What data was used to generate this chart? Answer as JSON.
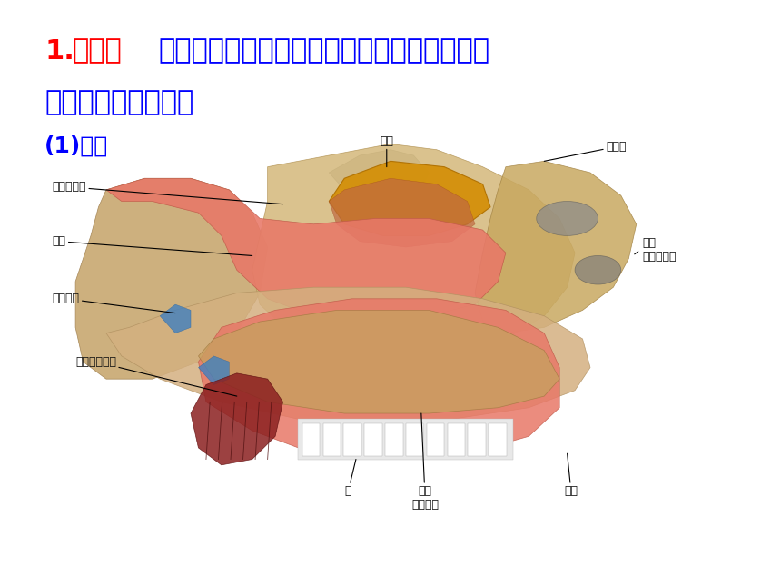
{
  "bg_color": "#ffffff",
  "line1_red_part1": "1.",
  "line1_red_part2": "呼吸道",
  "line1_blue": "：由鼻、咽、喉、气管和支气管等组成，是气",
  "line2_blue": "体进出人体的通道。",
  "subtitle_blue": "(1)鼻：",
  "title_fontsize": 22,
  "subtitle_fontsize": 18,
  "label_color": "#111111",
  "label_fontsize": 9,
  "red_color": "#ff0000",
  "blue_color": "#0000ff",
  "black_color": "#000000"
}
